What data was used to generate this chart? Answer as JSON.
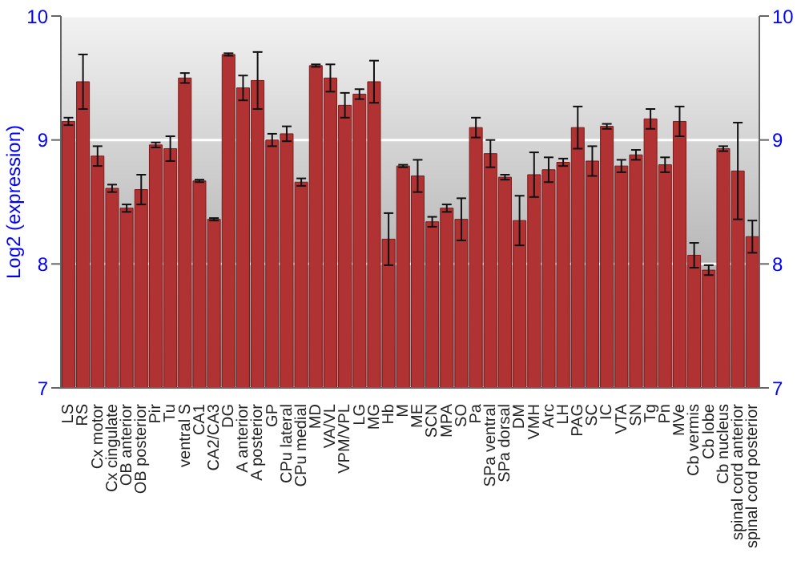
{
  "chart_data": {
    "type": "bar",
    "ylabel": "Log2 (expression)",
    "categories": [
      "LS",
      "RS",
      "Cx motor",
      "Cx cingulate",
      "OB anterior",
      "OB posterior",
      "Pir",
      "Tu",
      "ventral S",
      "CA1",
      "CA2/CA3",
      "DG",
      "A anterior",
      "A posterior",
      "GP",
      "CPu lateral",
      "CPu medial",
      "MD",
      "VA/VL",
      "VPM/VPL",
      "LG",
      "MG",
      "Hb",
      "M",
      "ME",
      "SCN",
      "MPA",
      "SO",
      "Pa",
      "SPa ventral",
      "SPa dorsal",
      "DM",
      "VMH",
      "Arc",
      "LH",
      "PAG",
      "SC",
      "IC",
      "VTA",
      "SN",
      "Tg",
      "Pn",
      "MVe",
      "Cb vermis",
      "Cb lobe",
      "Cb nucleus",
      "spinal cord anterior",
      "spinal cord posterior"
    ],
    "values": [
      9.15,
      9.47,
      8.87,
      8.61,
      8.45,
      8.6,
      8.96,
      8.93,
      9.5,
      8.67,
      8.36,
      9.69,
      9.42,
      9.48,
      9.0,
      9.05,
      8.66,
      9.6,
      9.5,
      9.28,
      9.37,
      9.47,
      8.2,
      8.79,
      8.71,
      8.34,
      8.45,
      8.36,
      9.1,
      8.89,
      8.7,
      8.35,
      8.72,
      8.76,
      8.82,
      9.1,
      8.83,
      9.11,
      8.79,
      8.88,
      9.17,
      8.8,
      9.15,
      8.07,
      7.95,
      8.93,
      8.75,
      8.22
    ],
    "errors": [
      0.03,
      0.22,
      0.08,
      0.03,
      0.03,
      0.12,
      0.02,
      0.1,
      0.04,
      0.01,
      0.01,
      0.01,
      0.1,
      0.23,
      0.05,
      0.06,
      0.03,
      0.01,
      0.11,
      0.1,
      0.04,
      0.17,
      0.21,
      0.01,
      0.13,
      0.04,
      0.03,
      0.17,
      0.08,
      0.11,
      0.02,
      0.2,
      0.18,
      0.1,
      0.03,
      0.17,
      0.12,
      0.02,
      0.05,
      0.04,
      0.08,
      0.06,
      0.12,
      0.1,
      0.04,
      0.02,
      0.39,
      0.13
    ],
    "color": "#b03232",
    "ylim": [
      7,
      10
    ],
    "yticks": [
      7,
      8,
      9,
      10
    ],
    "y2lim": [
      7,
      10
    ],
    "y2ticks": [
      7,
      8,
      9,
      10
    ],
    "grid": "y"
  }
}
